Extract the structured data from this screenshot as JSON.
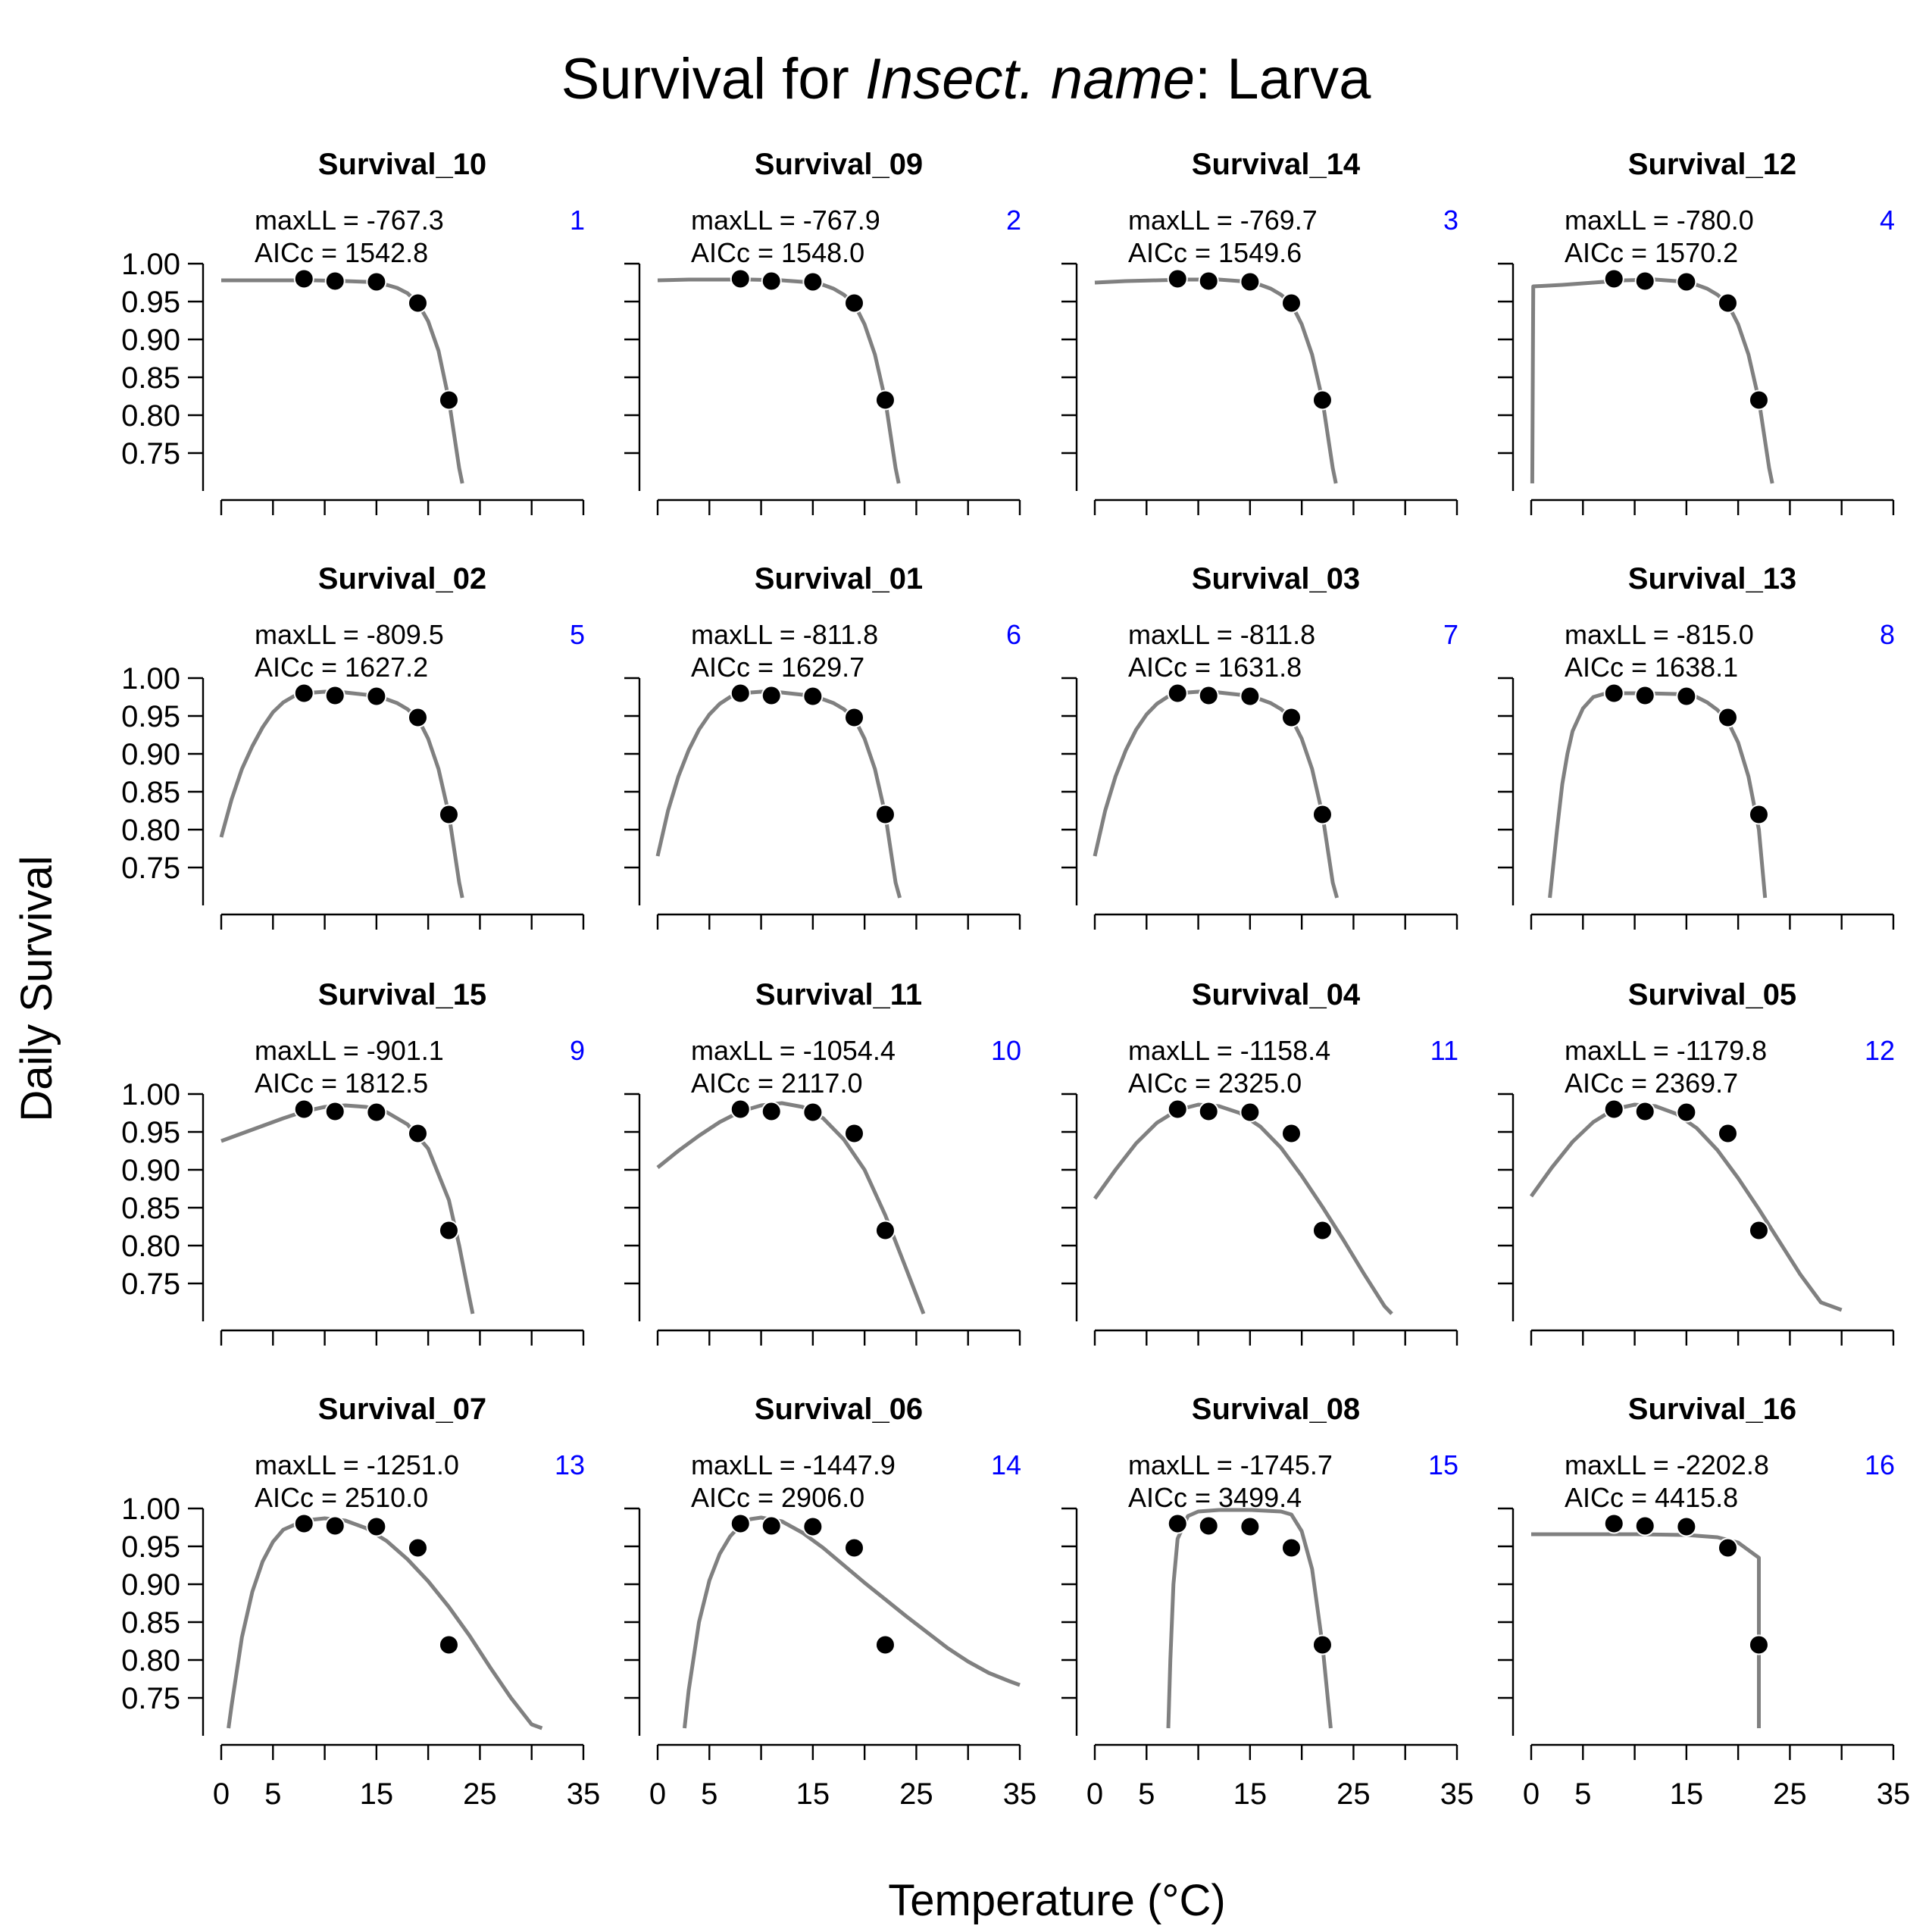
{
  "figure": {
    "title_prefix": "Survival for ",
    "title_italic": "Insect. name",
    "title_suffix": ": Larva",
    "ylabel": "Daily Survival",
    "xlabel": "Temperature (°C)",
    "stat_labels": {
      "maxll": "maxLL = ",
      "aicc": "AICc = "
    },
    "colors": {
      "curve": "#808080",
      "points": "#000000",
      "rank": "#0000FF",
      "axis": "#000000"
    }
  },
  "chart_data": {
    "type": "scatter",
    "layout": "4x4 grid of small multiples",
    "x_ticks": [
      0,
      5,
      10,
      15,
      20,
      25,
      30,
      35
    ],
    "x_tick_labels": [
      "0",
      "5",
      "",
      "15",
      "",
      "25",
      "",
      "35"
    ],
    "y_ticks": [
      0.75,
      0.8,
      0.85,
      0.9,
      0.95,
      1.0
    ],
    "y_tick_labels": [
      "0.75",
      "0.80",
      "0.85",
      "0.90",
      "0.95",
      "1.00"
    ],
    "xlim": [
      0,
      35
    ],
    "ylim": [
      0.71,
      1.0
    ],
    "observed": {
      "x": [
        8,
        11,
        15,
        19,
        22
      ],
      "y": [
        0.98,
        0.977,
        0.976,
        0.948,
        0.82
      ]
    },
    "panels": [
      {
        "name": "Survival_10",
        "rank": "1",
        "maxll": "-767.3",
        "aicc": "1542.8",
        "curve": [
          [
            0,
            0.978
          ],
          [
            3,
            0.978
          ],
          [
            6,
            0.978
          ],
          [
            9,
            0.978
          ],
          [
            12,
            0.977
          ],
          [
            14,
            0.976
          ],
          [
            16,
            0.972
          ],
          [
            17,
            0.968
          ],
          [
            18,
            0.961
          ],
          [
            19,
            0.948
          ],
          [
            20,
            0.924
          ],
          [
            21,
            0.885
          ],
          [
            22,
            0.82
          ],
          [
            23,
            0.73
          ],
          [
            23.3,
            0.71
          ]
        ]
      },
      {
        "name": "Survival_09",
        "rank": "2",
        "maxll": "-767.9",
        "aicc": "1548.0",
        "curve": [
          [
            0,
            0.978
          ],
          [
            3,
            0.979
          ],
          [
            6,
            0.979
          ],
          [
            9,
            0.979
          ],
          [
            12,
            0.978
          ],
          [
            14,
            0.976
          ],
          [
            16,
            0.972
          ],
          [
            17,
            0.967
          ],
          [
            18,
            0.959
          ],
          [
            19,
            0.947
          ],
          [
            20,
            0.92
          ],
          [
            21,
            0.88
          ],
          [
            22,
            0.82
          ],
          [
            23,
            0.73
          ],
          [
            23.3,
            0.71
          ]
        ]
      },
      {
        "name": "Survival_14",
        "rank": "3",
        "maxll": "-769.7",
        "aicc": "1549.6",
        "curve": [
          [
            0,
            0.975
          ],
          [
            3,
            0.977
          ],
          [
            6,
            0.978
          ],
          [
            9,
            0.979
          ],
          [
            12,
            0.979
          ],
          [
            14,
            0.977
          ],
          [
            16,
            0.972
          ],
          [
            17,
            0.967
          ],
          [
            18,
            0.959
          ],
          [
            19,
            0.947
          ],
          [
            20,
            0.92
          ],
          [
            21,
            0.88
          ],
          [
            22,
            0.82
          ],
          [
            23,
            0.73
          ],
          [
            23.3,
            0.71
          ]
        ]
      },
      {
        "name": "Survival_12",
        "rank": "4",
        "maxll": "-780.0",
        "aicc": "1570.2",
        "curve": [
          [
            0.1,
            0.71
          ],
          [
            0.2,
            0.97
          ],
          [
            3,
            0.972
          ],
          [
            6,
            0.975
          ],
          [
            9,
            0.978
          ],
          [
            12,
            0.979
          ],
          [
            14,
            0.977
          ],
          [
            16,
            0.972
          ],
          [
            17,
            0.967
          ],
          [
            18,
            0.959
          ],
          [
            19,
            0.947
          ],
          [
            20,
            0.92
          ],
          [
            21,
            0.88
          ],
          [
            22,
            0.82
          ],
          [
            23,
            0.73
          ],
          [
            23.3,
            0.71
          ]
        ]
      },
      {
        "name": "Survival_02",
        "rank": "5",
        "maxll": "-809.5",
        "aicc": "1627.2",
        "curve": [
          [
            0,
            0.79
          ],
          [
            1,
            0.84
          ],
          [
            2,
            0.88
          ],
          [
            3,
            0.91
          ],
          [
            4,
            0.935
          ],
          [
            5,
            0.955
          ],
          [
            6,
            0.968
          ],
          [
            7,
            0.976
          ],
          [
            8,
            0.98
          ],
          [
            10,
            0.982
          ],
          [
            12,
            0.981
          ],
          [
            14,
            0.978
          ],
          [
            16,
            0.972
          ],
          [
            17,
            0.967
          ],
          [
            18,
            0.959
          ],
          [
            19,
            0.947
          ],
          [
            20,
            0.92
          ],
          [
            21,
            0.88
          ],
          [
            22,
            0.82
          ],
          [
            23,
            0.73
          ],
          [
            23.3,
            0.71
          ]
        ]
      },
      {
        "name": "Survival_01",
        "rank": "6",
        "maxll": "-811.8",
        "aicc": "1629.7",
        "curve": [
          [
            0,
            0.765
          ],
          [
            1,
            0.825
          ],
          [
            2,
            0.87
          ],
          [
            3,
            0.905
          ],
          [
            4,
            0.932
          ],
          [
            5,
            0.952
          ],
          [
            6,
            0.966
          ],
          [
            7,
            0.975
          ],
          [
            8,
            0.98
          ],
          [
            10,
            0.982
          ],
          [
            12,
            0.981
          ],
          [
            14,
            0.978
          ],
          [
            16,
            0.972
          ],
          [
            17,
            0.967
          ],
          [
            18,
            0.959
          ],
          [
            19,
            0.947
          ],
          [
            20,
            0.92
          ],
          [
            21,
            0.88
          ],
          [
            22,
            0.82
          ],
          [
            23,
            0.73
          ],
          [
            23.4,
            0.71
          ]
        ]
      },
      {
        "name": "Survival_03",
        "rank": "7",
        "maxll": "-811.8",
        "aicc": "1631.8",
        "curve": [
          [
            0,
            0.765
          ],
          [
            1,
            0.825
          ],
          [
            2,
            0.87
          ],
          [
            3,
            0.905
          ],
          [
            4,
            0.932
          ],
          [
            5,
            0.952
          ],
          [
            6,
            0.966
          ],
          [
            7,
            0.975
          ],
          [
            8,
            0.98
          ],
          [
            10,
            0.982
          ],
          [
            12,
            0.981
          ],
          [
            14,
            0.978
          ],
          [
            16,
            0.972
          ],
          [
            17,
            0.967
          ],
          [
            18,
            0.959
          ],
          [
            19,
            0.947
          ],
          [
            20,
            0.92
          ],
          [
            21,
            0.88
          ],
          [
            22,
            0.82
          ],
          [
            23,
            0.73
          ],
          [
            23.4,
            0.71
          ]
        ]
      },
      {
        "name": "Survival_13",
        "rank": "8",
        "maxll": "-815.0",
        "aicc": "1638.1",
        "curve": [
          [
            1.8,
            0.71
          ],
          [
            2.5,
            0.8
          ],
          [
            3,
            0.86
          ],
          [
            3.5,
            0.9
          ],
          [
            4,
            0.93
          ],
          [
            5,
            0.96
          ],
          [
            6,
            0.975
          ],
          [
            7,
            0.979
          ],
          [
            8,
            0.98
          ],
          [
            11,
            0.98
          ],
          [
            14,
            0.979
          ],
          [
            16,
            0.975
          ],
          [
            17,
            0.968
          ],
          [
            18,
            0.958
          ],
          [
            19,
            0.943
          ],
          [
            20,
            0.915
          ],
          [
            21,
            0.87
          ],
          [
            22,
            0.8
          ],
          [
            22.6,
            0.71
          ]
        ]
      },
      {
        "name": "Survival_15",
        "rank": "9",
        "maxll": "-901.1",
        "aicc": "1812.5",
        "curve": [
          [
            0,
            0.938
          ],
          [
            2,
            0.948
          ],
          [
            4,
            0.958
          ],
          [
            6,
            0.968
          ],
          [
            8,
            0.977
          ],
          [
            10,
            0.983
          ],
          [
            12,
            0.985
          ],
          [
            14,
            0.983
          ],
          [
            16,
            0.976
          ],
          [
            18,
            0.96
          ],
          [
            20,
            0.928
          ],
          [
            22,
            0.86
          ],
          [
            23,
            0.8
          ],
          [
            24,
            0.73
          ],
          [
            24.3,
            0.71
          ]
        ]
      },
      {
        "name": "Survival_11",
        "rank": "10",
        "maxll": "-1054.4",
        "aicc": "2117.0",
        "curve": [
          [
            0,
            0.903
          ],
          [
            2,
            0.925
          ],
          [
            4,
            0.945
          ],
          [
            6,
            0.963
          ],
          [
            8,
            0.977
          ],
          [
            10,
            0.985
          ],
          [
            12,
            0.988
          ],
          [
            14,
            0.983
          ],
          [
            16,
            0.968
          ],
          [
            18,
            0.94
          ],
          [
            20,
            0.9
          ],
          [
            22,
            0.84
          ],
          [
            24,
            0.77
          ],
          [
            25.7,
            0.71
          ]
        ]
      },
      {
        "name": "Survival_04",
        "rank": "11",
        "maxll": "-1158.4",
        "aicc": "2325.0",
        "curve": [
          [
            0,
            0.862
          ],
          [
            2,
            0.9
          ],
          [
            4,
            0.935
          ],
          [
            6,
            0.962
          ],
          [
            8,
            0.979
          ],
          [
            10,
            0.986
          ],
          [
            12,
            0.984
          ],
          [
            14,
            0.975
          ],
          [
            16,
            0.957
          ],
          [
            18,
            0.929
          ],
          [
            20,
            0.892
          ],
          [
            22,
            0.851
          ],
          [
            24,
            0.808
          ],
          [
            26,
            0.763
          ],
          [
            28,
            0.72
          ],
          [
            28.7,
            0.71
          ]
        ]
      },
      {
        "name": "Survival_05",
        "rank": "12",
        "maxll": "-1179.8",
        "aicc": "2369.7",
        "curve": [
          [
            0,
            0.865
          ],
          [
            2,
            0.903
          ],
          [
            4,
            0.937
          ],
          [
            6,
            0.963
          ],
          [
            8,
            0.98
          ],
          [
            10,
            0.986
          ],
          [
            12,
            0.984
          ],
          [
            14,
            0.974
          ],
          [
            16,
            0.955
          ],
          [
            18,
            0.926
          ],
          [
            20,
            0.889
          ],
          [
            22,
            0.848
          ],
          [
            24,
            0.805
          ],
          [
            26,
            0.762
          ],
          [
            28,
            0.725
          ],
          [
            30,
            0.715
          ]
        ]
      },
      {
        "name": "Survival_07",
        "rank": "13",
        "maxll": "-1251.0",
        "aicc": "2510.0",
        "curve": [
          [
            0.7,
            0.71
          ],
          [
            1,
            0.74
          ],
          [
            2,
            0.83
          ],
          [
            3,
            0.89
          ],
          [
            4,
            0.93
          ],
          [
            5,
            0.956
          ],
          [
            6,
            0.972
          ],
          [
            8,
            0.984
          ],
          [
            10,
            0.987
          ],
          [
            12,
            0.984
          ],
          [
            14,
            0.974
          ],
          [
            16,
            0.957
          ],
          [
            18,
            0.933
          ],
          [
            20,
            0.904
          ],
          [
            22,
            0.87
          ],
          [
            24,
            0.832
          ],
          [
            26,
            0.79
          ],
          [
            28,
            0.75
          ],
          [
            30,
            0.715
          ],
          [
            31,
            0.71
          ]
        ]
      },
      {
        "name": "Survival_06",
        "rank": "14",
        "maxll": "-1447.9",
        "aicc": "2906.0",
        "curve": [
          [
            2.6,
            0.71
          ],
          [
            3,
            0.76
          ],
          [
            4,
            0.85
          ],
          [
            5,
            0.905
          ],
          [
            6,
            0.94
          ],
          [
            7,
            0.963
          ],
          [
            8,
            0.978
          ],
          [
            9,
            0.986
          ],
          [
            10,
            0.988
          ],
          [
            12,
            0.983
          ],
          [
            14,
            0.968
          ],
          [
            16,
            0.948
          ],
          [
            18,
            0.925
          ],
          [
            20,
            0.902
          ],
          [
            22,
            0.88
          ],
          [
            24,
            0.858
          ],
          [
            26,
            0.837
          ],
          [
            28,
            0.816
          ],
          [
            30,
            0.798
          ],
          [
            32,
            0.783
          ],
          [
            34,
            0.772
          ],
          [
            35,
            0.767
          ]
        ]
      },
      {
        "name": "Survival_08",
        "rank": "15",
        "maxll": "-1745.7",
        "aicc": "3499.4",
        "curve": [
          [
            7.1,
            0.71
          ],
          [
            7.3,
            0.8
          ],
          [
            7.6,
            0.9
          ],
          [
            8,
            0.96
          ],
          [
            9,
            0.99
          ],
          [
            10,
            0.996
          ],
          [
            12,
            0.998
          ],
          [
            15,
            0.998
          ],
          [
            18,
            0.996
          ],
          [
            19,
            0.992
          ],
          [
            20,
            0.97
          ],
          [
            21,
            0.92
          ],
          [
            22,
            0.82
          ],
          [
            22.8,
            0.71
          ]
        ]
      },
      {
        "name": "Survival_16",
        "rank": "16",
        "maxll": "-2202.8",
        "aicc": "4415.8",
        "curve": [
          [
            0,
            0.966
          ],
          [
            5,
            0.966
          ],
          [
            10,
            0.966
          ],
          [
            15,
            0.965
          ],
          [
            18,
            0.962
          ],
          [
            20,
            0.955
          ],
          [
            21.5,
            0.94
          ],
          [
            22,
            0.935
          ],
          [
            22,
            0.71
          ]
        ]
      }
    ]
  }
}
